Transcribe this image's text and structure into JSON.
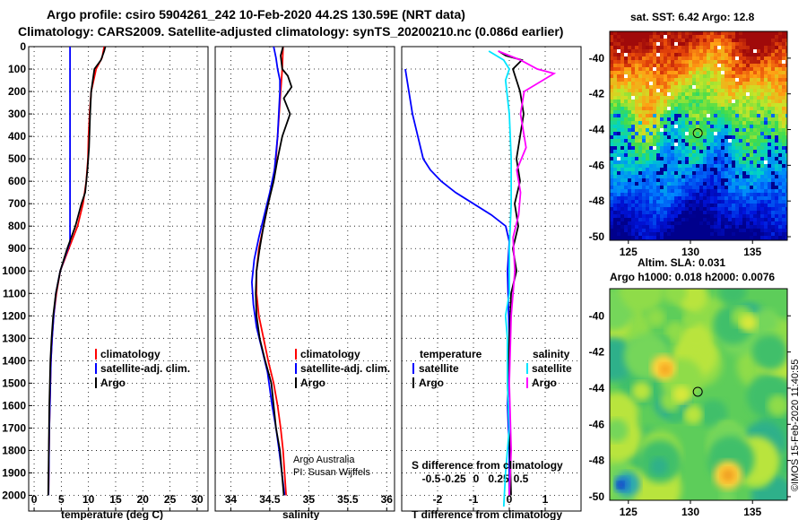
{
  "header": {
    "line1": "Argo profile: csiro 5904261_242 10-Feb-2020 44.2S 130.59E (NRT data)",
    "line2": "Climatology: CARS2009. Satellite-adjusted climatology: synTS_20200210.nc (0.086d earlier)"
  },
  "colors": {
    "climatology": "#ff0000",
    "satellite": "#0000ff",
    "argo": "#000000",
    "sat_salinity": "#00e5ff",
    "argo_salinity": "#ff00ff"
  },
  "chart_data": [
    {
      "type": "line",
      "name": "temperature",
      "xlabel": "temperature (deg C)",
      "ylabel": "",
      "xlim": [
        -1,
        32
      ],
      "ylim": [
        2070,
        0
      ],
      "xticks": [
        0,
        5,
        10,
        15,
        20,
        25,
        30
      ],
      "xticklabels": [
        "0",
        "5",
        "10",
        "15",
        "20",
        "25",
        "30"
      ],
      "yticks": [
        0,
        100,
        200,
        300,
        400,
        500,
        600,
        700,
        800,
        900,
        1000,
        1100,
        1200,
        1300,
        1400,
        1500,
        1600,
        1700,
        1800,
        1900,
        2000
      ],
      "yticklabels": [
        "0",
        "100",
        "200",
        "300",
        "400",
        "500",
        "600",
        "700",
        "800",
        "900",
        "1000",
        "1100",
        "1200",
        "1300",
        "1400",
        "1500",
        "1600",
        "1700",
        "1800",
        "1900",
        "2000"
      ],
      "grid": true,
      "legend": [
        {
          "label": "climatology",
          "color": "#ff0000"
        },
        {
          "label": "satellite-adj. clim.",
          "color": "#0000ff"
        },
        {
          "label": "Argo",
          "color": "#000000"
        }
      ],
      "series": [
        {
          "name": "climatology",
          "color": "#ff0000",
          "x": [
            12.9,
            12.5,
            11.4,
            10.5,
            10.2,
            10.0,
            9.9,
            9.6,
            9.0,
            8.0,
            6.4,
            4.8,
            4.1,
            3.6,
            3.3,
            3.1,
            3.0,
            2.9,
            2.8,
            2.75,
            2.65
          ],
          "y": [
            0,
            50,
            100,
            200,
            300,
            400,
            500,
            600,
            700,
            800,
            900,
            1000,
            1100,
            1200,
            1300,
            1400,
            1500,
            1600,
            1700,
            1800,
            2000
          ]
        },
        {
          "name": "satellite-adj. clim.",
          "color": "#0000ff",
          "x": [
            6.6,
            6.6,
            6.6,
            6.6,
            6.6,
            4.8,
            4.0,
            3.6,
            3.3,
            3.1,
            3.0,
            2.9,
            2.8,
            2.75,
            2.65
          ],
          "y": [
            0,
            400,
            600,
            800,
            870,
            1000,
            1100,
            1200,
            1300,
            1400,
            1500,
            1600,
            1700,
            1800,
            2000
          ]
        },
        {
          "name": "Argo",
          "color": "#000000",
          "x": [
            13.1,
            12.9,
            12.3,
            11.1,
            10.5,
            10.3,
            10.1,
            9.8,
            9.4,
            8.7,
            7.6,
            6.1,
            4.8,
            4.0,
            3.5,
            3.2,
            3.0,
            2.9,
            2.8,
            2.7,
            2.6
          ],
          "y": [
            0,
            20,
            60,
            100,
            200,
            300,
            450,
            550,
            650,
            700,
            800,
            900,
            1000,
            1100,
            1200,
            1300,
            1400,
            1500,
            1600,
            1800,
            2000
          ]
        }
      ]
    },
    {
      "type": "line",
      "name": "salinity",
      "xlabel": "salinity",
      "ylabel": "",
      "xlim": [
        33.8,
        36.1
      ],
      "ylim": [
        2070,
        0
      ],
      "xticks": [
        34,
        34.5,
        35,
        35.5,
        36
      ],
      "xticklabels": [
        "34",
        "34.5",
        "35",
        "35.5",
        "36"
      ],
      "grid": true,
      "legend": [
        {
          "label": "climatology",
          "color": "#ff0000"
        },
        {
          "label": "satellite-adj. clim.",
          "color": "#0000ff"
        },
        {
          "label": "Argo",
          "color": "#000000"
        }
      ],
      "annotations": [
        "Argo Australia",
        "PI: Susan Wijffels"
      ],
      "series": [
        {
          "name": "climatology",
          "color": "#ff0000",
          "x": [
            34.67,
            34.66,
            34.64,
            34.62,
            34.6,
            34.58,
            34.54,
            34.48,
            34.42,
            34.36,
            34.33,
            34.33,
            34.36,
            34.42,
            34.48,
            34.55,
            34.6,
            34.64,
            34.67,
            34.71
          ],
          "y": [
            0,
            100,
            200,
            300,
            400,
            500,
            600,
            700,
            800,
            900,
            1000,
            1100,
            1200,
            1300,
            1400,
            1500,
            1600,
            1700,
            1800,
            2000
          ]
        },
        {
          "name": "satellite-adj. clim.",
          "color": "#0000ff",
          "x": [
            34.55,
            34.58,
            34.6,
            34.63,
            34.63,
            34.6,
            34.56,
            34.5,
            34.43,
            34.36,
            34.3,
            34.27,
            34.29,
            34.33,
            34.4,
            34.47,
            34.53,
            34.58,
            34.62,
            34.69
          ],
          "y": [
            0,
            50,
            100,
            150,
            200,
            400,
            550,
            650,
            750,
            850,
            950,
            1050,
            1150,
            1250,
            1350,
            1450,
            1600,
            1700,
            1800,
            2000
          ]
        },
        {
          "name": "Argo",
          "color": "#000000",
          "x": [
            34.67,
            34.64,
            34.66,
            34.73,
            34.78,
            34.68,
            34.76,
            34.66,
            34.6,
            34.55,
            34.48,
            34.42,
            34.37,
            34.33,
            34.32,
            34.33,
            34.37,
            34.44,
            34.52,
            34.58,
            34.63,
            34.68
          ],
          "y": [
            0,
            40,
            100,
            130,
            180,
            230,
            300,
            400,
            500,
            600,
            700,
            800,
            900,
            1000,
            1100,
            1200,
            1300,
            1400,
            1500,
            1700,
            1800,
            2000
          ]
        }
      ]
    },
    {
      "type": "line",
      "name": "difference",
      "xlabel": "T difference from climatology",
      "xlabel_top": "S difference from climatology",
      "xlim": [
        -3.0,
        2.0
      ],
      "ylim": [
        2070,
        0
      ],
      "xticks": [
        -2,
        -1,
        0,
        1
      ],
      "xticklabels": [
        "-2",
        "-1",
        "0",
        "1"
      ],
      "xticks_top": [
        -0.5,
        -0.25,
        0,
        0.25,
        0.5
      ],
      "xticklabels_top": [
        "-0.5",
        "-0.25",
        "0",
        "0.25",
        "0.5"
      ],
      "grid": true,
      "legend": {
        "temperature_title": "temperature",
        "salinity_title": "salinity",
        "temperature_items": [
          {
            "label": "satellite",
            "color": "#0000ff"
          },
          {
            "label": "Argo",
            "color": "#000000"
          }
        ],
        "salinity_items": [
          {
            "label": "satellite",
            "color": "#00e5ff"
          },
          {
            "label": "Argo",
            "color": "#ff00ff"
          }
        ]
      },
      "series": [
        {
          "name": "T satellite",
          "color": "#0000ff",
          "x": [
            -2.9,
            -2.8,
            -2.7,
            -2.55,
            -2.4,
            -2.2,
            -1.9,
            -1.5,
            -1.0,
            -0.5,
            -0.1,
            0.0,
            -0.05,
            0.0,
            -0.05,
            0.0,
            0.0
          ],
          "y": [
            100,
            200,
            300,
            400,
            500,
            550,
            600,
            650,
            700,
            750,
            800,
            870,
            1000,
            1300,
            1600,
            1800,
            2000
          ]
        },
        {
          "name": "T Argo",
          "color": "#000000",
          "x": [
            -0.3,
            -0.1,
            0.35,
            0.1,
            0.2,
            0.3,
            0.4,
            0.3,
            0.2,
            0.3,
            0.15,
            0.25,
            0.1,
            0.2,
            0.05,
            0.0,
            -0.05,
            0.0,
            0.05
          ],
          "y": [
            20,
            40,
            60,
            100,
            150,
            200,
            300,
            400,
            500,
            600,
            700,
            800,
            900,
            1000,
            1100,
            1300,
            1500,
            1700,
            2000
          ]
        },
        {
          "name": "S satellite",
          "color": "#00e5ff",
          "x": [
            -0.55,
            -0.15,
            0.0,
            -0.1,
            0.0,
            0.05,
            0.05,
            0.0,
            0.0,
            0.0,
            -0.1,
            -0.05,
            -0.05,
            0.0,
            -0.1,
            -0.15
          ],
          "y": [
            20,
            60,
            100,
            150,
            300,
            500,
            700,
            900,
            1000,
            1100,
            1200,
            1300,
            1500,
            1700,
            1900,
            2050
          ]
        },
        {
          "name": "S Argo",
          "color": "#ff00ff",
          "x": [
            -0.3,
            0.3,
            0.75,
            1.2,
            0.4,
            0.3,
            0.45,
            0.2,
            0.3,
            0.25,
            0.1,
            0.15,
            0.05,
            0.0,
            0.05,
            0.0
          ],
          "y": [
            20,
            60,
            100,
            120,
            200,
            300,
            450,
            550,
            650,
            750,
            850,
            1000,
            1200,
            1500,
            1800,
            2000
          ]
        }
      ]
    },
    {
      "type": "heatmap",
      "name": "sst_map",
      "title": "sat. SST: 6.42 Argo: 12.8",
      "xticks": [
        125,
        130,
        135
      ],
      "yticks": [
        -40,
        -42,
        -44,
        -46,
        -48,
        -50
      ],
      "xlim": [
        123.5,
        137.8
      ],
      "ylim": [
        -50.2,
        -38.5
      ],
      "marker": {
        "lon": 130.59,
        "lat": -44.2
      }
    },
    {
      "type": "heatmap",
      "name": "sla_map",
      "title": "Altim. SLA: 0.031",
      "subtitle": "Argo h1000: 0.018 h2000: 0.0076",
      "xticks": [
        125,
        130,
        135
      ],
      "yticks": [
        -40,
        -42,
        -44,
        -46,
        -48,
        -50
      ],
      "xlim": [
        123.5,
        137.8
      ],
      "ylim": [
        -50.2,
        -38.5
      ],
      "marker": {
        "lon": 130.59,
        "lat": -44.2
      }
    }
  ],
  "footer": {
    "credit": "©IMOS 15-Feb-2020 11:40:55"
  }
}
